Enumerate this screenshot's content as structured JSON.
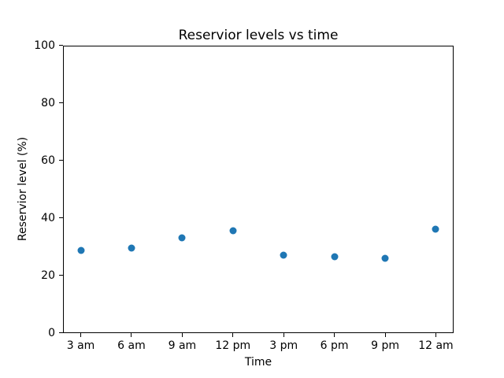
{
  "chart_data": {
    "type": "scatter",
    "title": "Reservior levels vs time",
    "xlabel": "Time",
    "ylabel": "Reservior level (%)",
    "categories": [
      "3 am",
      "6 am",
      "9 am",
      "12 pm",
      "3 pm",
      "6 pm",
      "9 pm",
      "12 am"
    ],
    "values": [
      28.5,
      29.5,
      33,
      35.5,
      27,
      26.5,
      26,
      36
    ],
    "ylim": [
      0,
      100
    ],
    "yticks": [
      0,
      20,
      40,
      60,
      80,
      100
    ],
    "marker_color": "#1f77b4",
    "grid": false,
    "legend_position": "none"
  }
}
